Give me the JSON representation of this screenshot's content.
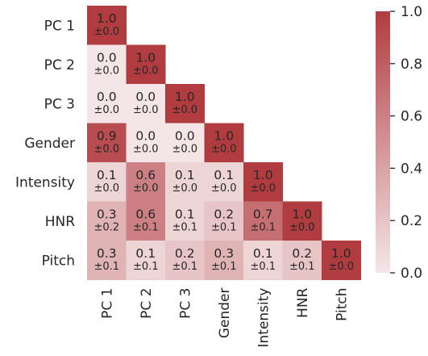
{
  "chart_data": {
    "type": "heatmap",
    "layout": "lower-triangle",
    "rows": [
      "PC 1",
      "PC 2",
      "PC 3",
      "Gender",
      "Intensity",
      "HNR",
      "Pitch"
    ],
    "columns": [
      "PC 1",
      "PC 2",
      "PC 3",
      "Gender",
      "Intensity",
      "HNR",
      "Pitch"
    ],
    "values": [
      [
        1.0
      ],
      [
        0.0,
        1.0
      ],
      [
        0.0,
        0.0,
        1.0
      ],
      [
        0.9,
        0.0,
        0.0,
        1.0
      ],
      [
        0.1,
        0.6,
        0.1,
        0.1,
        1.0
      ],
      [
        0.3,
        0.6,
        0.1,
        0.2,
        0.7,
        1.0
      ],
      [
        0.3,
        0.1,
        0.2,
        0.3,
        0.1,
        0.2,
        1.0
      ]
    ],
    "errors": [
      [
        "±0.0"
      ],
      [
        "±0.0",
        "±0.0"
      ],
      [
        "±0.0",
        "±0.0",
        "±0.0"
      ],
      [
        "±0.0",
        "±0.0",
        "±0.0",
        "±0.0"
      ],
      [
        "±0.0",
        "±0.0",
        "±0.0",
        "±0.0",
        "±0.0"
      ],
      [
        "±0.2",
        "±0.1",
        "±0.1",
        "±0.1",
        "±0.1",
        "±0.0"
      ],
      [
        "±0.1",
        "±0.1",
        "±0.1",
        "±0.1",
        "±0.1",
        "±0.1",
        "±0.0"
      ]
    ],
    "colorbar": {
      "range": [
        0.0,
        1.0
      ],
      "ticks": [
        "0.0",
        "0.2",
        "0.4",
        "0.6",
        "0.8",
        "1.0"
      ],
      "color_low": "#f4e6e7",
      "color_high": "#b13c40"
    }
  }
}
